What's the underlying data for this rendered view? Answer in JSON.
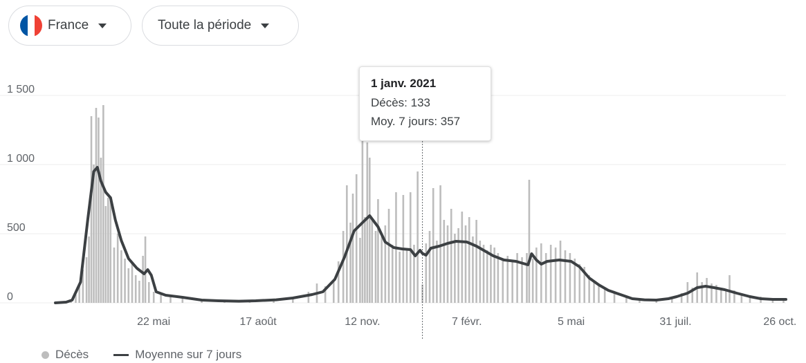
{
  "filters": {
    "country": {
      "label": "France",
      "flag_colors": [
        "#0055A4",
        "#FFFFFF",
        "#EF4135"
      ]
    },
    "period": {
      "label": "Toute la période"
    }
  },
  "tooltip": {
    "date": "1 janv. 2021",
    "deaths_label": "Décès: 133",
    "avg_label": "Moy. 7 jours: 357",
    "x": "2021-01-01"
  },
  "legend": {
    "bars": "Décès",
    "line": "Moyenne sur 7 jours"
  },
  "colors": {
    "bars": "#bdbdbd",
    "line": "#3c4043",
    "grid": "#ececec",
    "text": "#5f6368"
  },
  "chart_data": {
    "type": "bar",
    "title": "",
    "xlabel": "",
    "ylabel": "",
    "ylim": [
      0,
      1550
    ],
    "xlim": [
      "2020-03-01",
      "2021-10-31"
    ],
    "yticks": [
      0,
      500,
      1000,
      1500
    ],
    "ytick_labels": [
      "0",
      "500",
      "1 000",
      "1 500"
    ],
    "xticks": [
      "2020-05-22",
      "2020-08-17",
      "2020-11-12",
      "2021-02-07",
      "2021-05-05",
      "2021-07-31",
      "2021-10-26"
    ],
    "xtick_labels": [
      "22 mai",
      "17 août",
      "12 nov.",
      "7 févr.",
      "5 mai",
      "31 juil.",
      "26 oct."
    ],
    "grid": true,
    "legend_position": "bottom-left",
    "series": [
      {
        "name": "Moyenne sur 7 jours",
        "type": "line",
        "points": [
          [
            "2020-03-01",
            0
          ],
          [
            "2020-03-10",
            5
          ],
          [
            "2020-03-15",
            20
          ],
          [
            "2020-03-22",
            150
          ],
          [
            "2020-03-28",
            600
          ],
          [
            "2020-04-02",
            950
          ],
          [
            "2020-04-05",
            980
          ],
          [
            "2020-04-08",
            880
          ],
          [
            "2020-04-12",
            800
          ],
          [
            "2020-04-16",
            760
          ],
          [
            "2020-04-20",
            600
          ],
          [
            "2020-04-25",
            450
          ],
          [
            "2020-05-01",
            320
          ],
          [
            "2020-05-08",
            250
          ],
          [
            "2020-05-14",
            210
          ],
          [
            "2020-05-17",
            240
          ],
          [
            "2020-05-20",
            200
          ],
          [
            "2020-05-24",
            80
          ],
          [
            "2020-06-01",
            55
          ],
          [
            "2020-06-15",
            40
          ],
          [
            "2020-07-01",
            20
          ],
          [
            "2020-07-15",
            15
          ],
          [
            "2020-08-01",
            12
          ],
          [
            "2020-08-15",
            15
          ],
          [
            "2020-09-01",
            22
          ],
          [
            "2020-09-15",
            35
          ],
          [
            "2020-10-01",
            60
          ],
          [
            "2020-10-10",
            80
          ],
          [
            "2020-10-20",
            170
          ],
          [
            "2020-10-28",
            330
          ],
          [
            "2020-11-05",
            520
          ],
          [
            "2020-11-12",
            580
          ],
          [
            "2020-11-18",
            630
          ],
          [
            "2020-11-25",
            550
          ],
          [
            "2020-12-01",
            440
          ],
          [
            "2020-12-08",
            400
          ],
          [
            "2020-12-15",
            390
          ],
          [
            "2020-12-22",
            385
          ],
          [
            "2020-12-26",
            340
          ],
          [
            "2020-12-30",
            380
          ],
          [
            "2021-01-01",
            357
          ],
          [
            "2021-01-04",
            345
          ],
          [
            "2021-01-08",
            395
          ],
          [
            "2021-01-15",
            410
          ],
          [
            "2021-01-22",
            430
          ],
          [
            "2021-01-29",
            445
          ],
          [
            "2021-02-07",
            440
          ],
          [
            "2021-02-15",
            410
          ],
          [
            "2021-02-22",
            375
          ],
          [
            "2021-03-01",
            340
          ],
          [
            "2021-03-10",
            310
          ],
          [
            "2021-03-20",
            300
          ],
          [
            "2021-03-30",
            275
          ],
          [
            "2021-04-02",
            355
          ],
          [
            "2021-04-06",
            310
          ],
          [
            "2021-04-10",
            280
          ],
          [
            "2021-04-15",
            300
          ],
          [
            "2021-04-25",
            310
          ],
          [
            "2021-05-05",
            300
          ],
          [
            "2021-05-12",
            260
          ],
          [
            "2021-05-20",
            180
          ],
          [
            "2021-05-28",
            130
          ],
          [
            "2021-06-05",
            90
          ],
          [
            "2021-06-15",
            60
          ],
          [
            "2021-06-25",
            30
          ],
          [
            "2021-07-05",
            22
          ],
          [
            "2021-07-15",
            20
          ],
          [
            "2021-07-25",
            30
          ],
          [
            "2021-08-01",
            45
          ],
          [
            "2021-08-10",
            70
          ],
          [
            "2021-08-18",
            110
          ],
          [
            "2021-08-25",
            120
          ],
          [
            "2021-09-01",
            110
          ],
          [
            "2021-09-10",
            95
          ],
          [
            "2021-09-20",
            70
          ],
          [
            "2021-10-01",
            45
          ],
          [
            "2021-10-10",
            30
          ],
          [
            "2021-10-20",
            25
          ],
          [
            "2021-10-31",
            25
          ]
        ]
      },
      {
        "name": "Décès",
        "type": "bar",
        "note": "daily deaths, estimated from pixels",
        "points": [
          [
            "2020-03-10",
            5
          ],
          [
            "2020-03-14",
            15
          ],
          [
            "2020-03-18",
            60
          ],
          [
            "2020-03-21",
            120
          ],
          [
            "2020-03-24",
            240
          ],
          [
            "2020-03-27",
            330
          ],
          [
            "2020-03-29",
            480
          ],
          [
            "2020-03-31",
            1350
          ],
          [
            "2020-04-02",
            1000
          ],
          [
            "2020-04-04",
            1410
          ],
          [
            "2020-04-06",
            1340
          ],
          [
            "2020-04-08",
            1050
          ],
          [
            "2020-04-10",
            1430
          ],
          [
            "2020-04-12",
            700
          ],
          [
            "2020-04-14",
            760
          ],
          [
            "2020-04-16",
            750
          ],
          [
            "2020-04-19",
            400
          ],
          [
            "2020-04-22",
            500
          ],
          [
            "2020-04-25",
            380
          ],
          [
            "2020-04-28",
            320
          ],
          [
            "2020-05-01",
            250
          ],
          [
            "2020-05-04",
            300
          ],
          [
            "2020-05-07",
            200
          ],
          [
            "2020-05-10",
            160
          ],
          [
            "2020-05-13",
            340
          ],
          [
            "2020-05-15",
            480
          ],
          [
            "2020-05-18",
            150
          ],
          [
            "2020-05-22",
            80
          ],
          [
            "2020-05-28",
            70
          ],
          [
            "2020-06-05",
            60
          ],
          [
            "2020-06-15",
            40
          ],
          [
            "2020-07-01",
            25
          ],
          [
            "2020-07-20",
            15
          ],
          [
            "2020-08-10",
            15
          ],
          [
            "2020-08-30",
            25
          ],
          [
            "2020-09-15",
            40
          ],
          [
            "2020-09-28",
            80
          ],
          [
            "2020-10-05",
            140
          ],
          [
            "2020-10-12",
            120
          ],
          [
            "2020-10-19",
            150
          ],
          [
            "2020-10-23",
            300
          ],
          [
            "2020-10-27",
            520
          ],
          [
            "2020-10-30",
            850
          ],
          [
            "2020-11-02",
            580
          ],
          [
            "2020-11-04",
            790
          ],
          [
            "2020-11-07",
            930
          ],
          [
            "2020-11-10",
            470
          ],
          [
            "2020-11-12",
            1220
          ],
          [
            "2020-11-14",
            620
          ],
          [
            "2020-11-16",
            1160
          ],
          [
            "2020-11-18",
            1050
          ],
          [
            "2020-11-20",
            600
          ],
          [
            "2020-11-23",
            520
          ],
          [
            "2020-11-25",
            750
          ],
          [
            "2020-11-28",
            480
          ],
          [
            "2020-12-01",
            560
          ],
          [
            "2020-12-04",
            680
          ],
          [
            "2020-12-07",
            420
          ],
          [
            "2020-12-10",
            800
          ],
          [
            "2020-12-13",
            370
          ],
          [
            "2020-12-16",
            780
          ],
          [
            "2020-12-19",
            380
          ],
          [
            "2020-12-22",
            800
          ],
          [
            "2020-12-25",
            420
          ],
          [
            "2020-12-28",
            950
          ],
          [
            "2021-01-01",
            133
          ],
          [
            "2021-01-04",
            430
          ],
          [
            "2021-01-07",
            520
          ],
          [
            "2021-01-10",
            830
          ],
          [
            "2021-01-13",
            450
          ],
          [
            "2021-01-16",
            850
          ],
          [
            "2021-01-19",
            600
          ],
          [
            "2021-01-22",
            560
          ],
          [
            "2021-01-25",
            680
          ],
          [
            "2021-01-28",
            500
          ],
          [
            "2021-01-31",
            540
          ],
          [
            "2021-02-03",
            660
          ],
          [
            "2021-02-06",
            560
          ],
          [
            "2021-02-09",
            620
          ],
          [
            "2021-02-12",
            480
          ],
          [
            "2021-02-15",
            600
          ],
          [
            "2021-02-18",
            450
          ],
          [
            "2021-02-21",
            420
          ],
          [
            "2021-02-24",
            380
          ],
          [
            "2021-02-27",
            420
          ],
          [
            "2021-03-02",
            400
          ],
          [
            "2021-03-05",
            360
          ],
          [
            "2021-03-09",
            320
          ],
          [
            "2021-03-13",
            340
          ],
          [
            "2021-03-17",
            310
          ],
          [
            "2021-03-21",
            360
          ],
          [
            "2021-03-25",
            330
          ],
          [
            "2021-03-29",
            360
          ],
          [
            "2021-03-31",
            890
          ],
          [
            "2021-04-03",
            320
          ],
          [
            "2021-04-06",
            400
          ],
          [
            "2021-04-10",
            430
          ],
          [
            "2021-04-14",
            360
          ],
          [
            "2021-04-18",
            420
          ],
          [
            "2021-04-22",
            400
          ],
          [
            "2021-04-26",
            450
          ],
          [
            "2021-04-30",
            380
          ],
          [
            "2021-05-04",
            360
          ],
          [
            "2021-05-08",
            320
          ],
          [
            "2021-05-12",
            280
          ],
          [
            "2021-05-16",
            260
          ],
          [
            "2021-05-20",
            200
          ],
          [
            "2021-05-24",
            150
          ],
          [
            "2021-05-28",
            120
          ],
          [
            "2021-06-02",
            100
          ],
          [
            "2021-06-10",
            70
          ],
          [
            "2021-06-20",
            50
          ],
          [
            "2021-07-01",
            30
          ],
          [
            "2021-07-15",
            20
          ],
          [
            "2021-07-28",
            40
          ],
          [
            "2021-08-05",
            70
          ],
          [
            "2021-08-10",
            150
          ],
          [
            "2021-08-14",
            110
          ],
          [
            "2021-08-18",
            220
          ],
          [
            "2021-08-22",
            150
          ],
          [
            "2021-08-26",
            180
          ],
          [
            "2021-08-30",
            140
          ],
          [
            "2021-09-03",
            130
          ],
          [
            "2021-09-07",
            110
          ],
          [
            "2021-09-11",
            100
          ],
          [
            "2021-09-14",
            200
          ],
          [
            "2021-09-18",
            90
          ],
          [
            "2021-09-24",
            70
          ],
          [
            "2021-10-01",
            55
          ],
          [
            "2021-10-10",
            45
          ],
          [
            "2021-10-20",
            35
          ],
          [
            "2021-10-29",
            30
          ]
        ]
      }
    ]
  }
}
